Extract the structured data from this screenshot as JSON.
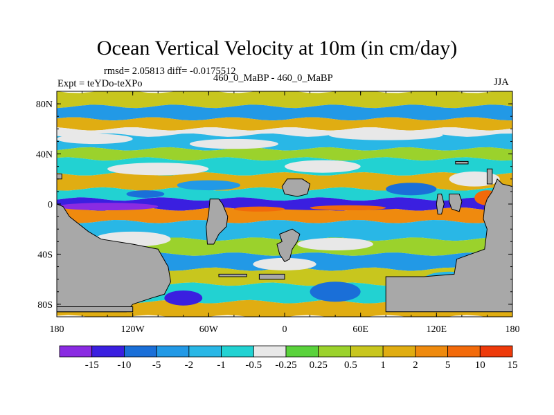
{
  "title": "Ocean Vertical Velocity at 10m (in cm/day)",
  "stats": "rmsd= 2.05813  diff= -0.0175512",
  "experiment": "Expt = teYDo-teXPo",
  "case_label": "460_0_MaBP - 460_0_MaBP",
  "season": "JJA",
  "colors": {
    "land": "#a8a8a8",
    "levels": [
      "#8a2be2",
      "#3a1fe0",
      "#1a6fd8",
      "#2299e6",
      "#29b7e6",
      "#22d2d2",
      "#e8e8e8",
      "#5ad23c",
      "#9bd22c",
      "#c8c61e",
      "#e0ad12",
      "#ef8a0e",
      "#f26a0a",
      "#ee3a0a"
    ]
  },
  "chart_data": {
    "type": "heatmap",
    "title": "Ocean Vertical Velocity at 10m (in cm/day)",
    "xlabel": "",
    "ylabel": "",
    "xlim": [
      -180,
      180
    ],
    "ylim": [
      -90,
      90
    ],
    "x_ticks": [
      {
        "value": -180,
        "label": "180"
      },
      {
        "value": -120,
        "label": "120W"
      },
      {
        "value": -60,
        "label": "60W"
      },
      {
        "value": 0,
        "label": "0"
      },
      {
        "value": 60,
        "label": "60E"
      },
      {
        "value": 120,
        "label": "120E"
      },
      {
        "value": 180,
        "label": "180"
      }
    ],
    "y_ticks": [
      {
        "value": 80,
        "label": "80N"
      },
      {
        "value": 40,
        "label": "40N"
      },
      {
        "value": 0,
        "label": "0"
      },
      {
        "value": -40,
        "label": "40S"
      },
      {
        "value": -80,
        "label": "80S"
      }
    ],
    "colorbar_labels": [
      "-15",
      "-10",
      "-5",
      "-2",
      "-1",
      "-0.5",
      "-0.25",
      "0.25",
      "0.5",
      "1",
      "2",
      "5",
      "10",
      "15"
    ],
    "colorbar_levels": [
      -15,
      -10,
      -5,
      -2,
      -1,
      -0.5,
      -0.25,
      0.25,
      0.5,
      1,
      2,
      5,
      10,
      15
    ],
    "field_bands": [
      {
        "lat": [
          78,
          90
        ],
        "level": 9
      },
      {
        "lat": [
          68,
          78
        ],
        "level": 3
      },
      {
        "lat": [
          60,
          68
        ],
        "level": 10
      },
      {
        "lat": [
          55,
          60
        ],
        "level": 6
      },
      {
        "lat": [
          44,
          55
        ],
        "level": 4
      },
      {
        "lat": [
          36,
          44
        ],
        "level": 8
      },
      {
        "lat": [
          24,
          36
        ],
        "level": 5
      },
      {
        "lat": [
          12,
          24
        ],
        "level": 10
      },
      {
        "lat": [
          4,
          12
        ],
        "level": 5
      },
      {
        "lat": [
          -4,
          4
        ],
        "level": 1
      },
      {
        "lat": [
          -14,
          -4
        ],
        "level": 11
      },
      {
        "lat": [
          -28,
          -14
        ],
        "level": 4
      },
      {
        "lat": [
          -40,
          -28
        ],
        "level": 8
      },
      {
        "lat": [
          -52,
          -40
        ],
        "level": 3
      },
      {
        "lat": [
          -64,
          -52
        ],
        "level": 9
      },
      {
        "lat": [
          -78,
          -64
        ],
        "level": 5
      },
      {
        "lat": [
          -90,
          -78
        ],
        "level": 10
      }
    ],
    "field_patches": [
      {
        "lon": -150,
        "lat": 52,
        "rlon": 30,
        "rlat": 4,
        "level": 6
      },
      {
        "lon": -40,
        "lat": 48,
        "rlon": 35,
        "rlat": 4,
        "level": 6
      },
      {
        "lon": 80,
        "lat": 55,
        "rlon": 45,
        "rlat": 4,
        "level": 6
      },
      {
        "lon": -100,
        "lat": 28,
        "rlon": 40,
        "rlat": 5,
        "level": 6
      },
      {
        "lon": 30,
        "lat": 30,
        "rlon": 30,
        "rlat": 5,
        "level": 6
      },
      {
        "lon": 150,
        "lat": 20,
        "rlon": 20,
        "rlat": 6,
        "level": 6
      },
      {
        "lon": -60,
        "lat": 15,
        "rlon": 25,
        "rlat": 4,
        "level": 3
      },
      {
        "lon": 100,
        "lat": 12,
        "rlon": 20,
        "rlat": 5,
        "level": 2
      },
      {
        "lon": -140,
        "lat": -2,
        "rlon": 40,
        "rlat": 3,
        "level": 0
      },
      {
        "lon": 40,
        "lat": -2,
        "rlon": 60,
        "rlat": 3,
        "level": 1
      },
      {
        "lon": 50,
        "lat": -3,
        "rlon": 30,
        "rlat": 2,
        "level": 12
      },
      {
        "lon": -20,
        "lat": -4,
        "rlon": 20,
        "rlat": 2,
        "level": 12
      },
      {
        "lon": -120,
        "lat": -28,
        "rlon": 30,
        "rlat": 6,
        "level": 6
      },
      {
        "lon": 40,
        "lat": -32,
        "rlon": 30,
        "rlat": 5,
        "level": 6
      },
      {
        "lon": -160,
        "lat": -46,
        "rlon": 20,
        "rlat": 5,
        "level": 6
      },
      {
        "lon": 0,
        "lat": -48,
        "rlon": 25,
        "rlat": 5,
        "level": 6
      },
      {
        "lon": -80,
        "lat": -75,
        "rlon": 15,
        "rlat": 6,
        "level": 1
      },
      {
        "lon": 40,
        "lat": -70,
        "rlon": 20,
        "rlat": 8,
        "level": 2
      },
      {
        "lon": 130,
        "lat": -60,
        "rlon": 20,
        "rlat": 6,
        "level": 4
      },
      {
        "lon": 160,
        "lat": 5,
        "rlon": 10,
        "rlat": 6,
        "level": 12
      },
      {
        "lon": -110,
        "lat": 8,
        "rlon": 15,
        "rlat": 3,
        "level": 2
      }
    ],
    "land_masses": [
      {
        "name": "west-landmass",
        "points": [
          [
            -180,
            0
          ],
          [
            -175,
            -2
          ],
          [
            -170,
            -10
          ],
          [
            -155,
            -22
          ],
          [
            -145,
            -28
          ],
          [
            -120,
            -32
          ],
          [
            -100,
            -36
          ],
          [
            -92,
            -50
          ],
          [
            -90,
            -62
          ],
          [
            -95,
            -72
          ],
          [
            -105,
            -75
          ],
          [
            -120,
            -80
          ],
          [
            -125,
            -86
          ],
          [
            -180,
            -86
          ]
        ]
      },
      {
        "name": "west-coast-sliver",
        "points": [
          [
            -180,
            24
          ],
          [
            -176,
            24
          ],
          [
            -176,
            20
          ],
          [
            -180,
            20
          ]
        ]
      },
      {
        "name": "central-block",
        "points": [
          [
            -59,
            4
          ],
          [
            -52,
            4
          ],
          [
            -49,
            0
          ],
          [
            -45,
            -10
          ],
          [
            -46,
            -18
          ],
          [
            -52,
            -24
          ],
          [
            -56,
            -32
          ],
          [
            -61,
            -32
          ],
          [
            -62,
            -18
          ],
          [
            -60,
            -8
          ]
        ]
      },
      {
        "name": "central-north-block",
        "points": [
          [
            2,
            20
          ],
          [
            14,
            20
          ],
          [
            20,
            16
          ],
          [
            18,
            8
          ],
          [
            10,
            6
          ],
          [
            0,
            8
          ],
          [
            -2,
            14
          ]
        ]
      },
      {
        "name": "central-south-block",
        "points": [
          [
            -4,
            -24
          ],
          [
            6,
            -20
          ],
          [
            12,
            -24
          ],
          [
            10,
            -30
          ],
          [
            6,
            -36
          ],
          [
            4,
            -44
          ],
          [
            0,
            -46
          ],
          [
            -4,
            -40
          ],
          [
            -6,
            -32
          ],
          [
            -2,
            -30
          ]
        ]
      },
      {
        "name": "south-strip",
        "points": [
          [
            -52,
            -56
          ],
          [
            -30,
            -56
          ],
          [
            -30,
            -58
          ],
          [
            -52,
            -58
          ]
        ]
      },
      {
        "name": "south-strip-2",
        "points": [
          [
            -20,
            -56
          ],
          [
            0,
            -56
          ],
          [
            0,
            -60
          ],
          [
            -20,
            -60
          ]
        ]
      },
      {
        "name": "east-island-1",
        "points": [
          [
            121,
            8
          ],
          [
            124,
            8
          ],
          [
            126,
            0
          ],
          [
            124,
            -8
          ],
          [
            121,
            -8
          ],
          [
            120,
            0
          ]
        ]
      },
      {
        "name": "east-island-2",
        "points": [
          [
            130,
            8
          ],
          [
            138,
            8
          ],
          [
            140,
            2
          ],
          [
            138,
            -6
          ],
          [
            132,
            -4
          ],
          [
            130,
            2
          ]
        ]
      },
      {
        "name": "east-small-north",
        "points": [
          [
            135,
            34
          ],
          [
            145,
            34
          ],
          [
            145,
            32
          ],
          [
            135,
            32
          ]
        ]
      },
      {
        "name": "east-small-2",
        "points": [
          [
            160,
            28
          ],
          [
            164,
            28
          ],
          [
            164,
            16
          ],
          [
            160,
            16
          ]
        ]
      },
      {
        "name": "east-landmass",
        "points": [
          [
            168,
            20
          ],
          [
            172,
            16
          ],
          [
            180,
            14
          ],
          [
            180,
            -86
          ],
          [
            80,
            -86
          ],
          [
            80,
            -58
          ],
          [
            110,
            -58
          ],
          [
            134,
            -56
          ],
          [
            136,
            -44
          ],
          [
            158,
            -36
          ],
          [
            160,
            -20
          ],
          [
            157,
            -12
          ],
          [
            158,
            -2
          ],
          [
            160,
            4
          ],
          [
            164,
            10
          ]
        ]
      },
      {
        "name": "south-left-land",
        "points": [
          [
            -180,
            -86
          ],
          [
            -120,
            -86
          ],
          [
            -120,
            -82
          ],
          [
            -180,
            -82
          ]
        ]
      }
    ]
  }
}
